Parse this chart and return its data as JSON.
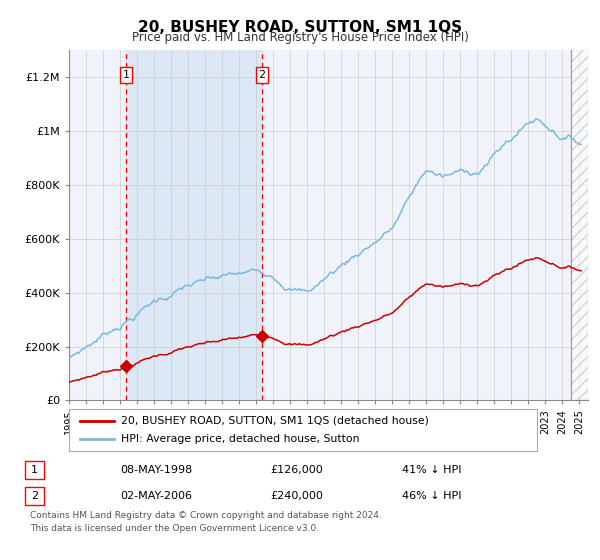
{
  "title": "20, BUSHEY ROAD, SUTTON, SM1 1QS",
  "subtitle": "Price paid vs. HM Land Registry's House Price Index (HPI)",
  "xlim_start": 1995.0,
  "xlim_end": 2025.5,
  "ylim": [
    0,
    1300000
  ],
  "yticks": [
    0,
    200000,
    400000,
    600000,
    800000,
    1000000,
    1200000
  ],
  "ytick_labels": [
    "£0",
    "£200K",
    "£400K",
    "£600K",
    "£800K",
    "£1M",
    "£1.2M"
  ],
  "sale1_x": 1998.36,
  "sale1_y": 126000,
  "sale1_date": "08-MAY-1998",
  "sale1_price": "£126,000",
  "sale1_hpi": "41% ↓ HPI",
  "sale2_x": 2006.34,
  "sale2_y": 240000,
  "sale2_date": "02-MAY-2006",
  "sale2_price": "£240,000",
  "sale2_hpi": "46% ↓ HPI",
  "hpi_color": "#7ab8e0",
  "price_color": "#cc0000",
  "bg_color": "#f0f4fa",
  "shaded_color": "#dce8f5",
  "legend1_label": "20, BUSHEY ROAD, SUTTON, SM1 1QS (detached house)",
  "legend2_label": "HPI: Average price, detached house, Sutton",
  "footer": "Contains HM Land Registry data © Crown copyright and database right 2024.\nThis data is licensed under the Open Government Licence v3.0.",
  "grid_color": "#cccccc",
  "hatch_start": 2024.5,
  "xtick_years": [
    1995,
    1996,
    1997,
    1998,
    1999,
    2000,
    2001,
    2002,
    2003,
    2004,
    2005,
    2006,
    2007,
    2008,
    2009,
    2010,
    2011,
    2012,
    2013,
    2014,
    2015,
    2016,
    2017,
    2018,
    2019,
    2020,
    2021,
    2022,
    2023,
    2024,
    2025
  ]
}
